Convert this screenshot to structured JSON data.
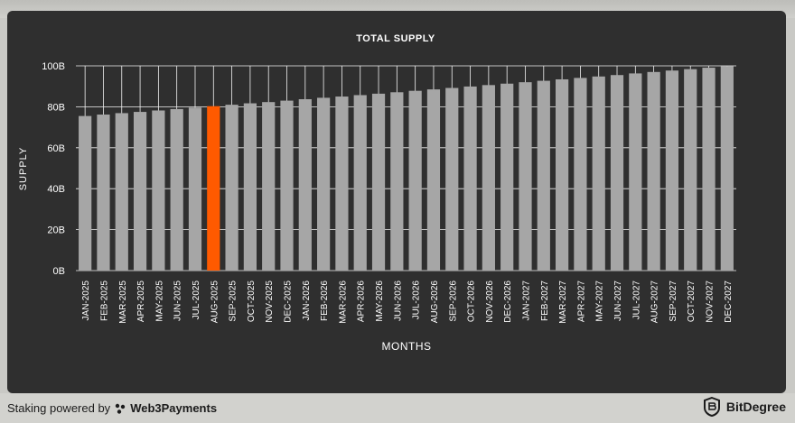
{
  "chart_data": {
    "type": "bar",
    "title": "TOTAL SUPPLY",
    "xlabel": "MONTHS",
    "ylabel": "SUPPLY",
    "ylim": [
      0,
      100
    ],
    "yticks": [
      "0B",
      "20B",
      "40B",
      "60B",
      "80B",
      "100B"
    ],
    "categories": [
      "JAN-2025",
      "FEB-2025",
      "MAR-2025",
      "APR-2025",
      "MAY-2025",
      "JUN-2025",
      "JUL-2025",
      "AUG-2025",
      "SEP-2025",
      "OCT-2025",
      "NOV-2025",
      "DEC-2025",
      "JAN-2026",
      "FEB-2026",
      "MAR-2026",
      "APR-2026",
      "MAY-2026",
      "JUN-2026",
      "JUL-2026",
      "AUG-2026",
      "SEP-2026",
      "OCT-2026",
      "NOV-2026",
      "DEC-2026",
      "JAN-2027",
      "FEB-2027",
      "MAR-2027",
      "APR-2027",
      "MAY-2027",
      "JUN-2027",
      "JUL-2027",
      "AUG-2027",
      "SEP-2027",
      "OCT-2027",
      "NOV-2027",
      "DEC-2027"
    ],
    "values": [
      75.5,
      76.2,
      76.9,
      77.5,
      78.2,
      78.9,
      79.6,
      80.3,
      81.0,
      81.7,
      82.3,
      83.0,
      83.7,
      84.4,
      85.0,
      85.7,
      86.4,
      87.1,
      87.8,
      88.5,
      89.2,
      89.9,
      90.6,
      91.3,
      92.0,
      92.7,
      93.4,
      94.1,
      94.8,
      95.5,
      96.3,
      97.0,
      97.7,
      98.4,
      99.1,
      99.8
    ],
    "highlight_index": 7,
    "grid": true,
    "colors": {
      "bar": "#a6a6a6",
      "highlight": "#ff5a00",
      "panel": "#2f2f2f",
      "grid": "#f2f2f2",
      "text": "#ffffff"
    }
  },
  "footer": {
    "staking_prefix": "Staking powered by",
    "staking_brand": "Web3Payments",
    "bitdegree": "BitDegree"
  }
}
